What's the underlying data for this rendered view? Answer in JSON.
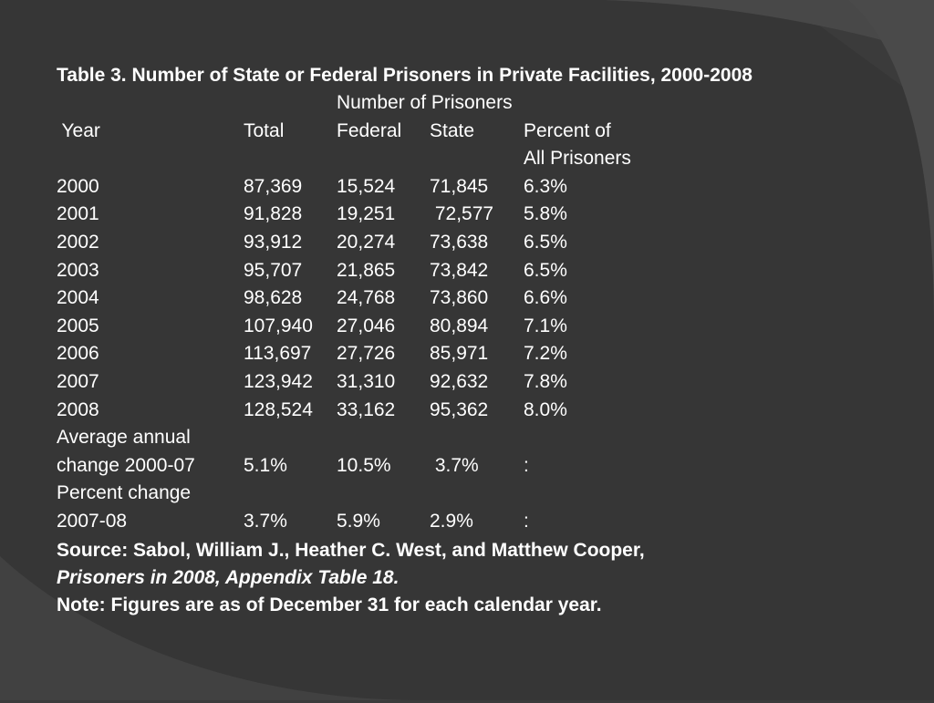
{
  "title": "Table 3. Number of State or Federal Prisoners in Private Facilities, 2000-2008",
  "header": {
    "group_label": "Number of Prisoners",
    "year": " Year",
    "total": "Total",
    "federal": "Federal",
    "state": "State",
    "percent_line1": "Percent of",
    "percent_line2": "All Prisoners"
  },
  "rows": [
    {
      "year": "2000",
      "total": "87,369",
      "federal": "15,524",
      "state": "71,845",
      "percent": "6.3%"
    },
    {
      "year": "2001",
      "total": "91,828",
      "federal": "19,251",
      "state": " 72,577",
      "percent": "5.8%"
    },
    {
      "year": "2002",
      "total": "93,912",
      "federal": "20,274",
      "state": "73,638",
      "percent": "6.5%"
    },
    {
      "year": "2003",
      "total": "95,707",
      "federal": "21,865",
      "state": "73,842",
      "percent": "6.5%"
    },
    {
      "year": "2004",
      "total": "98,628",
      "federal": "24,768",
      "state": "73,860",
      "percent": "6.6%"
    },
    {
      "year": "2005",
      "total": "107,940",
      "federal": "27,046",
      "state": "80,894",
      "percent": "7.1%"
    },
    {
      "year": "2006",
      "total": "113,697",
      "federal": "27,726",
      "state": "85,971",
      "percent": "7.2%"
    },
    {
      "year": "2007",
      "total": "123,942",
      "federal": "31,310",
      "state": "92,632",
      "percent": "7.8%"
    },
    {
      "year": "2008",
      "total": "128,524",
      "federal": "33,162",
      "state": "95,362",
      "percent": "8.0%"
    }
  ],
  "avg_change": {
    "label_line1": "Average annual",
    "label_line2": "change 2000-07",
    "total": "5.1%",
    "federal": "10.5%",
    "state": " 3.7%",
    "percent": ":"
  },
  "pct_change": {
    "label_line1": "Percent change",
    "label_line2": "2007-08",
    "total": "3.7%",
    "federal": "5.9%",
    "state": "2.9%",
    "percent": ":"
  },
  "source_line1": "Source: Sabol, William J., Heather C. West, and Matthew Cooper,",
  "source_line2": "Prisoners in 2008, Appendix Table 18.",
  "note": "Note: Figures are as of December 31 for each calendar year.",
  "colors": {
    "background": "#3b3b3b",
    "text": "#ffffff",
    "decor_band": "#454545"
  }
}
